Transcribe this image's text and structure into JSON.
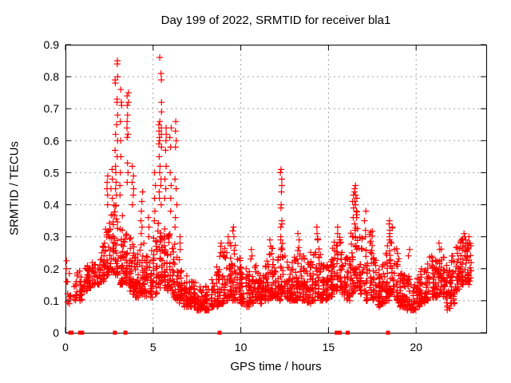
{
  "page": {
    "background": "#ffffff"
  },
  "chart_data": {
    "type": "scatter",
    "title": "Day 199 of 2022, SRMTID for receiver bla1",
    "xlabel": "GPS time / hours",
    "ylabel": "SRMTID / TECUs",
    "xlim": [
      0,
      24
    ],
    "ylim": [
      0,
      0.9
    ],
    "xticks": [
      0,
      5,
      10,
      15,
      20
    ],
    "yticks": [
      0,
      0.1,
      0.2,
      0.3,
      0.4,
      0.5,
      0.6,
      0.7,
      0.8,
      0.9
    ],
    "grid": true,
    "legend": "none",
    "marker": "plus",
    "marker_color": "#ff0000",
    "grid_color": "#a0a0a0",
    "axis_color": "#000000",
    "x_data_end": 23.15,
    "bucket_width_hours": 0.25,
    "baseline_envelope": [
      [
        0.0,
        0.09,
        0.23,
        8
      ],
      [
        0.25,
        0.09,
        0.12,
        2
      ],
      [
        0.5,
        0.1,
        0.2,
        16
      ],
      [
        0.75,
        0.1,
        0.22,
        20
      ],
      [
        1.0,
        0.13,
        0.21,
        22
      ],
      [
        1.25,
        0.14,
        0.21,
        22
      ],
      [
        1.5,
        0.15,
        0.22,
        22
      ],
      [
        1.75,
        0.15,
        0.23,
        22
      ],
      [
        2.0,
        0.16,
        0.28,
        24
      ],
      [
        2.25,
        0.18,
        0.33,
        26
      ],
      [
        2.5,
        0.19,
        0.37,
        28
      ],
      [
        2.75,
        0.18,
        0.4,
        30
      ],
      [
        3.0,
        0.15,
        0.37,
        28
      ],
      [
        3.25,
        0.15,
        0.33,
        24
      ],
      [
        3.5,
        0.13,
        0.3,
        26
      ],
      [
        3.75,
        0.12,
        0.29,
        26
      ],
      [
        4.0,
        0.11,
        0.26,
        26
      ],
      [
        4.25,
        0.12,
        0.28,
        26
      ],
      [
        4.5,
        0.11,
        0.24,
        24
      ],
      [
        4.75,
        0.11,
        0.26,
        24
      ],
      [
        5.0,
        0.12,
        0.3,
        26
      ],
      [
        5.25,
        0.14,
        0.35,
        28
      ],
      [
        5.5,
        0.14,
        0.33,
        28
      ],
      [
        5.75,
        0.13,
        0.31,
        26
      ],
      [
        6.0,
        0.11,
        0.3,
        26
      ],
      [
        6.25,
        0.1,
        0.26,
        24
      ],
      [
        6.5,
        0.09,
        0.2,
        24
      ],
      [
        6.75,
        0.08,
        0.18,
        24
      ],
      [
        7.0,
        0.08,
        0.16,
        24
      ],
      [
        7.25,
        0.08,
        0.16,
        24
      ],
      [
        7.5,
        0.07,
        0.15,
        24
      ],
      [
        7.75,
        0.07,
        0.14,
        24
      ],
      [
        8.0,
        0.07,
        0.15,
        24
      ],
      [
        8.25,
        0.08,
        0.18,
        24
      ],
      [
        8.5,
        0.08,
        0.21,
        24
      ],
      [
        8.75,
        0.09,
        0.26,
        24
      ],
      [
        9.0,
        0.1,
        0.27,
        26
      ],
      [
        9.25,
        0.11,
        0.29,
        26
      ],
      [
        9.5,
        0.1,
        0.32,
        26
      ],
      [
        9.75,
        0.1,
        0.24,
        26
      ],
      [
        10.0,
        0.09,
        0.22,
        26
      ],
      [
        10.25,
        0.08,
        0.2,
        26
      ],
      [
        10.5,
        0.09,
        0.24,
        26
      ],
      [
        10.75,
        0.1,
        0.22,
        26
      ],
      [
        11.0,
        0.09,
        0.2,
        26
      ],
      [
        11.25,
        0.1,
        0.22,
        26
      ],
      [
        11.5,
        0.1,
        0.25,
        26
      ],
      [
        11.75,
        0.11,
        0.27,
        26
      ],
      [
        12.0,
        0.1,
        0.24,
        26
      ],
      [
        12.25,
        0.12,
        0.28,
        26
      ],
      [
        12.5,
        0.1,
        0.24,
        26
      ],
      [
        12.75,
        0.1,
        0.22,
        26
      ],
      [
        13.0,
        0.1,
        0.24,
        26
      ],
      [
        13.25,
        0.11,
        0.29,
        26
      ],
      [
        13.5,
        0.1,
        0.24,
        26
      ],
      [
        13.75,
        0.09,
        0.22,
        26
      ],
      [
        14.0,
        0.1,
        0.26,
        26
      ],
      [
        14.25,
        0.11,
        0.31,
        26
      ],
      [
        14.5,
        0.1,
        0.26,
        26
      ],
      [
        14.75,
        0.1,
        0.22,
        26
      ],
      [
        15.0,
        0.11,
        0.24,
        26
      ],
      [
        15.25,
        0.13,
        0.29,
        26
      ],
      [
        15.5,
        0.14,
        0.31,
        26
      ],
      [
        15.75,
        0.12,
        0.26,
        24
      ],
      [
        16.0,
        0.1,
        0.24,
        24
      ],
      [
        16.25,
        0.12,
        0.33,
        26
      ],
      [
        16.5,
        0.14,
        0.38,
        26
      ],
      [
        16.75,
        0.12,
        0.3,
        24
      ],
      [
        17.0,
        0.1,
        0.26,
        24
      ],
      [
        17.25,
        0.11,
        0.32,
        24
      ],
      [
        17.5,
        0.1,
        0.24,
        24
      ],
      [
        17.75,
        0.08,
        0.2,
        24
      ],
      [
        18.0,
        0.09,
        0.22,
        24
      ],
      [
        18.25,
        0.1,
        0.29,
        26
      ],
      [
        18.5,
        0.12,
        0.33,
        26
      ],
      [
        18.75,
        0.1,
        0.28,
        24
      ],
      [
        19.0,
        0.08,
        0.2,
        24
      ],
      [
        19.25,
        0.08,
        0.18,
        24
      ],
      [
        19.5,
        0.07,
        0.18,
        24
      ],
      [
        19.75,
        0.07,
        0.15,
        24
      ],
      [
        20.0,
        0.08,
        0.18,
        24
      ],
      [
        20.25,
        0.09,
        0.2,
        24
      ],
      [
        20.5,
        0.1,
        0.22,
        24
      ],
      [
        20.75,
        0.11,
        0.24,
        24
      ],
      [
        21.0,
        0.11,
        0.26,
        24
      ],
      [
        21.25,
        0.12,
        0.28,
        24
      ],
      [
        21.5,
        0.11,
        0.24,
        24
      ],
      [
        21.75,
        0.07,
        0.2,
        24
      ],
      [
        22.0,
        0.09,
        0.24,
        24
      ],
      [
        22.25,
        0.13,
        0.28,
        26
      ],
      [
        22.5,
        0.15,
        0.3,
        26
      ],
      [
        22.75,
        0.16,
        0.3,
        26
      ],
      [
        23.0,
        0.15,
        0.28,
        14
      ]
    ],
    "spike_clusters": [
      [
        0.06,
        0.03,
        [
          0.225,
          0.2,
          0.16
        ]
      ],
      [
        2.35,
        0.07,
        [
          0.47,
          0.49,
          0.45,
          0.43,
          0.4
        ]
      ],
      [
        2.62,
        0.06,
        [
          0.51,
          0.48,
          0.45,
          0.42
        ]
      ],
      [
        2.9,
        0.08,
        [
          0.85,
          0.84,
          0.8,
          0.79,
          0.78,
          0.73,
          0.72,
          0.68,
          0.65,
          0.62,
          0.6,
          0.57,
          0.55,
          0.52,
          0.5,
          0.47,
          0.45,
          0.43
        ]
      ],
      [
        3.15,
        0.06,
        [
          0.76,
          0.72,
          0.71,
          0.66,
          0.6,
          0.55,
          0.5,
          0.46,
          0.43
        ]
      ],
      [
        3.55,
        0.06,
        [
          0.75,
          0.74,
          0.72,
          0.71,
          0.68,
          0.66,
          0.64,
          0.62,
          0.61,
          0.53,
          0.5,
          0.47
        ]
      ],
      [
        3.85,
        0.05,
        [
          0.52,
          0.49,
          0.47,
          0.45,
          0.43,
          0.4
        ]
      ],
      [
        4.35,
        0.06,
        [
          0.44,
          0.41,
          0.38,
          0.35,
          0.33,
          0.31
        ]
      ],
      [
        4.75,
        0.05,
        [
          0.36,
          0.33,
          0.3
        ]
      ],
      [
        5.1,
        0.04,
        [
          0.5,
          0.46,
          0.42,
          0.38,
          0.35
        ]
      ],
      [
        5.4,
        0.08,
        [
          0.86,
          0.81,
          0.79,
          0.72,
          0.69,
          0.66,
          0.65,
          0.64,
          0.63,
          0.62,
          0.61,
          0.6,
          0.59,
          0.58,
          0.55,
          0.52,
          0.5,
          0.48,
          0.46,
          0.44,
          0.42,
          0.4
        ]
      ],
      [
        5.7,
        0.05,
        [
          0.64,
          0.62,
          0.6,
          0.57,
          0.52,
          0.48,
          0.45,
          0.42
        ]
      ],
      [
        6.0,
        0.05,
        [
          0.64,
          0.61,
          0.58,
          0.5,
          0.46,
          0.42,
          0.38
        ]
      ],
      [
        6.3,
        0.06,
        [
          0.66,
          0.63,
          0.6,
          0.58,
          0.48,
          0.45,
          0.4,
          0.36,
          0.33
        ]
      ],
      [
        6.55,
        0.05,
        [
          0.3,
          0.28,
          0.26
        ]
      ],
      [
        8.85,
        0.06,
        [
          0.28,
          0.27,
          0.25
        ]
      ],
      [
        9.25,
        0.05,
        [
          0.3,
          0.28
        ]
      ],
      [
        9.6,
        0.04,
        [
          0.33,
          0.3
        ]
      ],
      [
        10.6,
        0.05,
        [
          0.26,
          0.24
        ]
      ],
      [
        11.7,
        0.06,
        [
          0.29,
          0.27
        ]
      ],
      [
        12.3,
        0.05,
        [
          0.51,
          0.5,
          0.48,
          0.46,
          0.44,
          0.4,
          0.39,
          0.35,
          0.34,
          0.33,
          0.3,
          0.29
        ]
      ],
      [
        13.3,
        0.05,
        [
          0.31,
          0.29
        ]
      ],
      [
        14.35,
        0.05,
        [
          0.33,
          0.31,
          0.29
        ]
      ],
      [
        15.5,
        0.06,
        [
          0.33,
          0.31
        ]
      ],
      [
        16.4,
        0.05,
        [
          0.43,
          0.41,
          0.39,
          0.36
        ]
      ],
      [
        16.55,
        0.08,
        [
          0.46,
          0.45,
          0.44,
          0.43,
          0.42,
          0.41,
          0.4,
          0.38,
          0.36,
          0.34,
          0.32,
          0.3
        ]
      ],
      [
        17.1,
        0.05,
        [
          0.38,
          0.35,
          0.32,
          0.3
        ]
      ],
      [
        18.55,
        0.1,
        [
          0.35,
          0.34,
          0.33,
          0.32,
          0.31,
          0.3,
          0.29,
          0.28
        ]
      ],
      [
        19.6,
        0.05,
        [
          0.26,
          0.24
        ]
      ],
      [
        21.35,
        0.05,
        [
          0.28,
          0.26
        ]
      ],
      [
        22.75,
        0.08,
        [
          0.31,
          0.3,
          0.29,
          0.28
        ]
      ],
      [
        23.05,
        0.06,
        [
          0.3,
          0.28
        ]
      ]
    ],
    "zero_value_marks_hours": [
      0.28,
      0.34,
      0.84,
      0.95,
      2.82,
      3.42,
      8.79,
      15.47,
      15.65,
      16.1,
      18.4
    ]
  }
}
